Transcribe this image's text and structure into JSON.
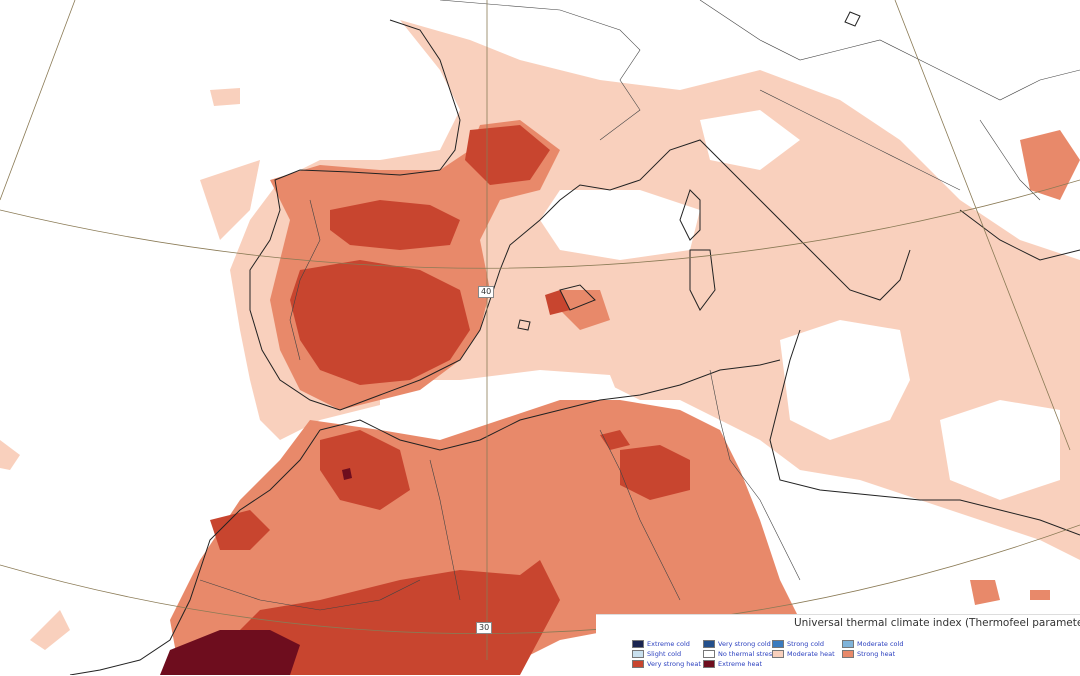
{
  "map": {
    "grid_labels": [
      "40",
      "30"
    ]
  },
  "legend": {
    "title": "Universal thermal climate index (Thermofeel parameter)",
    "items": [
      {
        "label": "Extreme cold",
        "color": "#1a2550"
      },
      {
        "label": "Very strong cold",
        "color": "#24508c"
      },
      {
        "label": "Strong cold",
        "color": "#3a7bbf"
      },
      {
        "label": "Moderate cold",
        "color": "#7fb3d9"
      },
      {
        "label": "Slight cold",
        "color": "#c9e0ee"
      },
      {
        "label": "No thermal stress",
        "color": "#ffffff"
      },
      {
        "label": "Moderate heat",
        "color": "#f9d0bd"
      },
      {
        "label": "Strong heat",
        "color": "#e8896a"
      },
      {
        "label": "Very strong heat",
        "color": "#c8452f"
      },
      {
        "label": "Extreme heat",
        "color": "#6e0d1e"
      }
    ]
  }
}
